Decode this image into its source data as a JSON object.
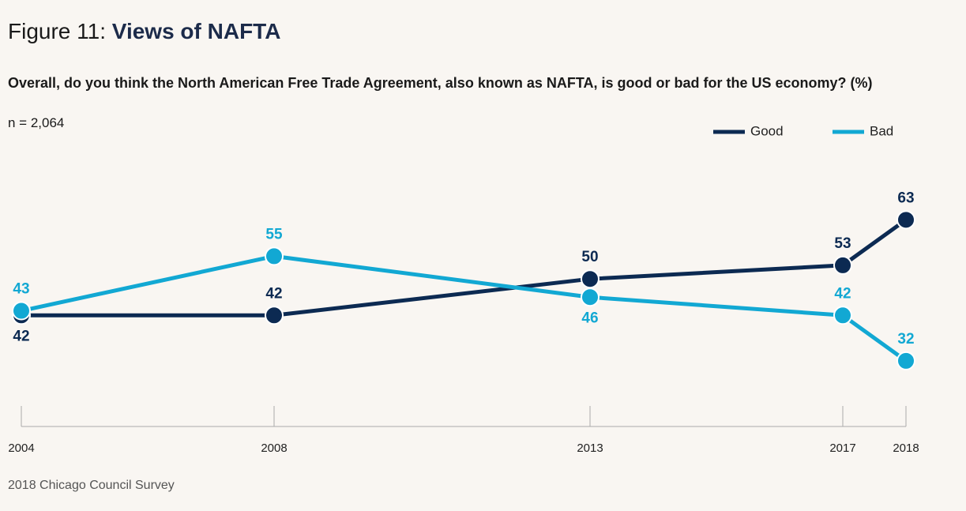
{
  "chart_data": {
    "type": "line",
    "figure_label": "Figure 11:",
    "title": "Views of NAFTA",
    "subtitle": "Overall, do you think the North American Free Trade Agreement, also known as NAFTA, is good or bad for the US economy?  (%)",
    "note": "n = 2,064",
    "source": "2018 Chicago Council Survey",
    "x": [
      2004,
      2008,
      2013,
      2017,
      2018
    ],
    "xlim": [
      2004,
      2018
    ],
    "xticks": [
      2004,
      2008,
      2013,
      2017,
      2018
    ],
    "ylim": [
      20,
      70
    ],
    "legend": "top-right",
    "series": [
      {
        "name": "Good",
        "color": "#0c2a52",
        "values": [
          42,
          42,
          50,
          53,
          63
        ]
      },
      {
        "name": "Bad",
        "color": "#12a8d3",
        "values": [
          43,
          55,
          46,
          42,
          32
        ]
      }
    ]
  }
}
